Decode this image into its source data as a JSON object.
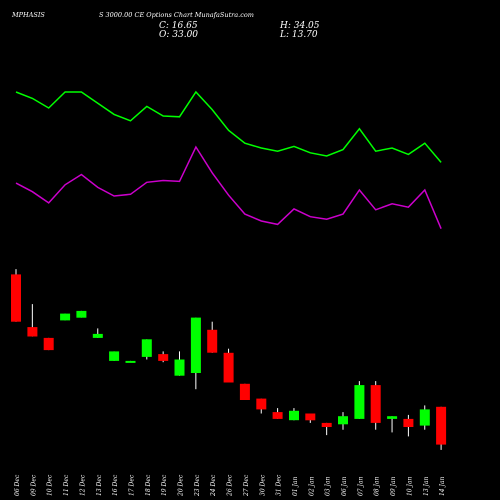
{
  "header": {
    "symbol": "MPHASIS",
    "title": "S 3000.00 CE Options  Chart MunafaSutra.com",
    "close": "C: 16.65",
    "open": "O: 33.00",
    "high": "H: 34.05",
    "low": "L: 13.70"
  },
  "colors": {
    "background": "#000000",
    "up": "#00ff00",
    "down": "#ff0000",
    "line_green": "#00ff00",
    "line_magenta": "#cc00cc",
    "text": "#ffffff"
  },
  "chart_data": {
    "type": "candlestick",
    "x_labels": [
      "06 Dec",
      "09 Dec",
      "10 Dec",
      "11 Dec",
      "12 Dec",
      "13 Dec",
      "16 Dec",
      "17 Dec",
      "18 Dec",
      "19 Dec",
      "20 Dec",
      "23 Dec",
      "24 Dec",
      "26 Dec",
      "27 Dec",
      "30 Dec",
      "31 Dec",
      "01 Jan",
      "02 Jan",
      "03 Jan",
      "06 Jan",
      "07 Jan",
      "08 Jan",
      "09 Jan",
      "10 Jan",
      "13 Jan",
      "14 Jan"
    ],
    "candles": [
      {
        "o": 0.93,
        "c": 0.58,
        "h": 0.97,
        "l": 0.58
      },
      {
        "o": 0.54,
        "c": 0.47,
        "h": 0.71,
        "l": 0.47
      },
      {
        "o": 0.46,
        "c": 0.37,
        "h": 0.46,
        "l": 0.37
      },
      {
        "o": 0.59,
        "c": 0.64,
        "h": 0.64,
        "l": 0.59
      },
      {
        "o": 0.61,
        "c": 0.66,
        "h": 0.66,
        "l": 0.61
      },
      {
        "o": 0.46,
        "c": 0.49,
        "h": 0.53,
        "l": 0.46
      },
      {
        "o": 0.29,
        "c": 0.36,
        "h": 0.36,
        "l": 0.29
      },
      {
        "o": 0.28,
        "c": 0.29,
        "h": 0.29,
        "l": 0.28
      },
      {
        "o": 0.32,
        "c": 0.45,
        "h": 0.45,
        "l": 0.3
      },
      {
        "o": 0.34,
        "c": 0.29,
        "h": 0.36,
        "l": 0.28
      },
      {
        "o": 0.18,
        "c": 0.3,
        "h": 0.36,
        "l": 0.18
      },
      {
        "o": 0.2,
        "c": 0.61,
        "h": 0.61,
        "l": 0.08
      },
      {
        "o": 0.52,
        "c": 0.35,
        "h": 0.58,
        "l": 0.35
      },
      {
        "o": 0.35,
        "c": 0.13,
        "h": 0.38,
        "l": 0.13
      },
      {
        "o": 0.12,
        "c": 0.0,
        "h": 0.12,
        "l": 0.0
      },
      {
        "o": 0.01,
        "c": -0.07,
        "h": 0.01,
        "l": -0.1
      },
      {
        "o": -0.09,
        "c": -0.14,
        "h": -0.06,
        "l": -0.14
      },
      {
        "o": -0.15,
        "c": -0.08,
        "h": -0.06,
        "l": -0.15
      },
      {
        "o": -0.1,
        "c": -0.15,
        "h": -0.1,
        "l": -0.17
      },
      {
        "o": -0.17,
        "c": -0.2,
        "h": -0.17,
        "l": -0.26
      },
      {
        "o": -0.18,
        "c": -0.12,
        "h": -0.09,
        "l": -0.22
      },
      {
        "o": -0.14,
        "c": 0.11,
        "h": 0.14,
        "l": -0.14
      },
      {
        "o": 0.11,
        "c": -0.17,
        "h": 0.14,
        "l": -0.22
      },
      {
        "o": -0.14,
        "c": -0.12,
        "h": -0.12,
        "l": -0.24
      },
      {
        "o": -0.14,
        "c": -0.2,
        "h": -0.11,
        "l": -0.27
      },
      {
        "o": -0.19,
        "c": -0.07,
        "h": -0.04,
        "l": -0.22
      },
      {
        "o": -0.05,
        "c": -0.33,
        "h": -0.05,
        "l": -0.37
      }
    ],
    "line_green": [
      1.0,
      0.92,
      0.8,
      1.0,
      1.0,
      0.86,
      0.72,
      0.64,
      0.82,
      0.7,
      0.69,
      1.0,
      0.78,
      0.52,
      0.36,
      0.3,
      0.26,
      0.32,
      0.24,
      0.2,
      0.28,
      0.54,
      0.26,
      0.3,
      0.22,
      0.36,
      0.12
    ],
    "line_magenta": [
      0.58,
      0.48,
      0.35,
      0.56,
      0.68,
      0.53,
      0.43,
      0.45,
      0.59,
      0.61,
      0.6,
      1.0,
      0.7,
      0.44,
      0.22,
      0.14,
      0.1,
      0.28,
      0.19,
      0.16,
      0.22,
      0.5,
      0.27,
      0.34,
      0.3,
      0.5,
      0.05
    ]
  }
}
